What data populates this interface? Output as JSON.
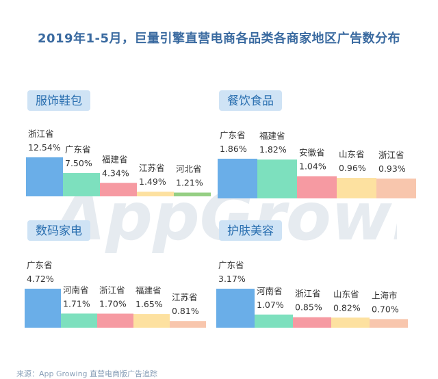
{
  "title": "2019年1-5月，巨量引擎直营电商各品类各商家地区广告数分布",
  "watermark": "AppGrowing",
  "source": "来源：App Growing 直营电商版广告追踪",
  "colors": [
    "#6aaee8",
    "#7de0be",
    "#f69aa2",
    "#fde1a0",
    "#f8c6ad"
  ],
  "chart_data": [
    {
      "type": "bar",
      "title": "服饰鞋包",
      "categories": [
        "浙江省",
        "广东省",
        "福建省",
        "江苏省",
        "河北省"
      ],
      "values": [
        12.54,
        7.5,
        4.34,
        1.49,
        1.21
      ],
      "value_labels": [
        "12.54%",
        "7.50%",
        "4.34%",
        "1.49%",
        "1.21%"
      ],
      "bar_colors": [
        "#6aaee8",
        "#7de0be",
        "#f69aa2",
        "#fde1a0",
        "#96cf84"
      ],
      "ylim": [
        0,
        12.54
      ]
    },
    {
      "type": "bar",
      "title": "餐饮食品",
      "categories": [
        "广东省",
        "福建省",
        "安徽省",
        "山东省",
        "浙江省"
      ],
      "values": [
        1.86,
        1.82,
        1.04,
        0.96,
        0.93
      ],
      "value_labels": [
        "1.86%",
        "1.82%",
        "1.04%",
        "0.96%",
        "0.93%"
      ],
      "bar_colors": [
        "#6aaee8",
        "#7de0be",
        "#f69aa2",
        "#fde1a0",
        "#f8c6ad"
      ],
      "ylim": [
        0,
        1.86
      ]
    },
    {
      "type": "bar",
      "title": "数码家电",
      "categories": [
        "广东省",
        "河南省",
        "浙江省",
        "福建省",
        "江苏省"
      ],
      "values": [
        4.72,
        1.71,
        1.7,
        1.65,
        0.81
      ],
      "value_labels": [
        "4.72%",
        "1.71%",
        "1.70%",
        "1.65%",
        "0.81%"
      ],
      "bar_colors": [
        "#6aaee8",
        "#7de0be",
        "#f69aa2",
        "#fde1a0",
        "#f8c6ad"
      ],
      "ylim": [
        0,
        4.72
      ]
    },
    {
      "type": "bar",
      "title": "护肤美容",
      "categories": [
        "广东省",
        "河南省",
        "浙江省",
        "山东省",
        "上海市"
      ],
      "values": [
        3.17,
        1.07,
        0.85,
        0.82,
        0.7
      ],
      "value_labels": [
        "3.17%",
        "1.07%",
        "0.85%",
        "0.82%",
        "0.70%"
      ],
      "bar_colors": [
        "#6aaee8",
        "#7de0be",
        "#f69aa2",
        "#fde1a0",
        "#f8c6ad"
      ],
      "ylim": [
        0,
        3.17
      ]
    }
  ]
}
